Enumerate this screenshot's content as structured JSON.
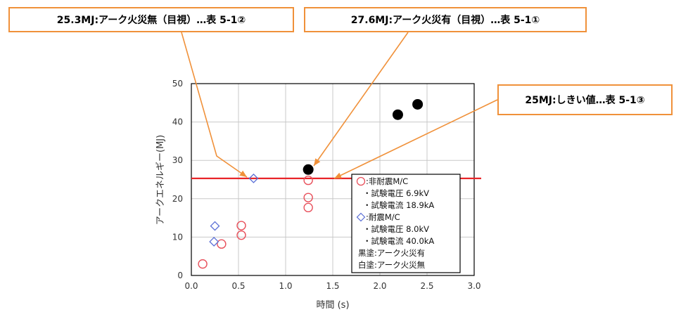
{
  "annotations": {
    "left": "25.3MJ:アーク火災無（目視）…表 5-1②",
    "middle": "27.6MJ:アーク火災有（目視）…表 5-1①",
    "right": "25MJ:しきい値…表 5-1③"
  },
  "colors": {
    "callout_border": "#f0913a",
    "arrow": "#f0913a",
    "threshold": "#e8262a",
    "non_seismic": "#e8505b",
    "seismic": "#5b6fd6",
    "fire_fill": "#000000"
  },
  "chart_data": {
    "type": "scatter",
    "xlabel": "時間 (s)",
    "ylabel": "アークエネルギー(MJ)",
    "xlim": [
      0,
      3.0
    ],
    "ylim": [
      0,
      50
    ],
    "x_ticks": [
      "0.0",
      "0.5",
      "1.0",
      "1.5",
      "2.0",
      "2.5",
      "3.0"
    ],
    "y_ticks": [
      "0",
      "10",
      "20",
      "30",
      "40",
      "50"
    ],
    "grid": true,
    "threshold": 25.3,
    "series": [
      {
        "name": "非耐震M/C（アーク火災無）",
        "marker": "circle-open",
        "points": [
          {
            "x": 0.12,
            "y": 3.0
          },
          {
            "x": 0.32,
            "y": 8.2
          },
          {
            "x": 0.53,
            "y": 10.5
          },
          {
            "x": 0.53,
            "y": 13.0
          },
          {
            "x": 1.24,
            "y": 17.7
          },
          {
            "x": 1.24,
            "y": 20.3
          },
          {
            "x": 1.24,
            "y": 24.8
          }
        ]
      },
      {
        "name": "耐震M/C（アーク火災無）",
        "marker": "diamond-open",
        "points": [
          {
            "x": 0.24,
            "y": 8.8
          },
          {
            "x": 0.25,
            "y": 12.9
          },
          {
            "x": 0.66,
            "y": 25.3
          }
        ]
      },
      {
        "name": "アーク火災有",
        "marker": "circle-filled",
        "points": [
          {
            "x": 1.24,
            "y": 27.6
          },
          {
            "x": 2.19,
            "y": 41.9
          },
          {
            "x": 2.4,
            "y": 44.6
          }
        ]
      }
    ],
    "legend": {
      "placement": "bottom-right",
      "lines": [
        {
          "marker": "circle",
          "text": ":非耐震M/C"
        },
        {
          "marker": "",
          "text": "・試験電圧 6.9kV"
        },
        {
          "marker": "",
          "text": "・試験電流 18.9kA"
        },
        {
          "marker": "diamond",
          "text": ":耐震M/C"
        },
        {
          "marker": "",
          "text": "・試験電圧 8.0kV"
        },
        {
          "marker": "",
          "text": "・試験電流 40.0kA"
        },
        {
          "marker": "",
          "text": "黒塗:アーク火災有"
        },
        {
          "marker": "",
          "text": "白塗:アーク火災無"
        }
      ]
    }
  }
}
